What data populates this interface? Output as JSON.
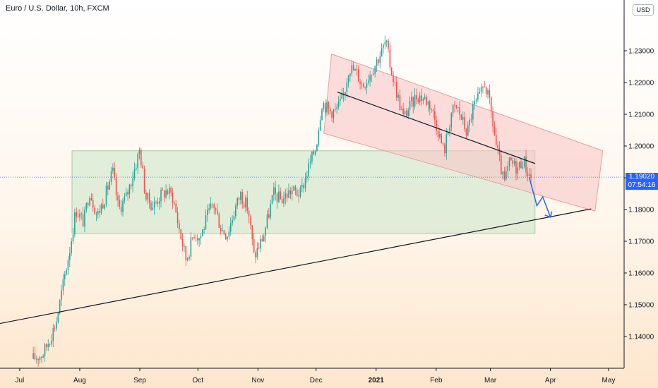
{
  "header": {
    "title": "Euro / U.S. Dollar, 10h, FXCM",
    "currency": "USD"
  },
  "price_tag": {
    "price": "1.19020",
    "countdown": "07:54:16"
  },
  "colors": {
    "up_candle": "#26a69a",
    "down_candle": "#ef5350",
    "green_zone": "#c8e6c9",
    "red_channel": "#f8c8c8",
    "trend_line": "#131722",
    "projection": "#2962ff",
    "price_tag": "#2962ff"
  },
  "chart_data": {
    "type": "candlestick",
    "title": "Euro / U.S. Dollar, 10h, FXCM",
    "xlabel": "",
    "ylabel": "",
    "ylim": [
      1.13,
      1.244
    ],
    "y_ticks": [
      "1.23000",
      "1.22000",
      "1.21000",
      "1.20000",
      "1.19000",
      "1.18000",
      "1.17000",
      "1.16000",
      "1.15000",
      "1.14000"
    ],
    "x_ticks": [
      {
        "label": "Jul",
        "bold": false
      },
      {
        "label": "Aug",
        "bold": false
      },
      {
        "label": "Sep",
        "bold": false
      },
      {
        "label": "Oct",
        "bold": false
      },
      {
        "label": "Nov",
        "bold": false
      },
      {
        "label": "Dec",
        "bold": false
      },
      {
        "label": "2021",
        "bold": true
      },
      {
        "label": "Feb",
        "bold": false
      },
      {
        "label": "Mar",
        "bold": false
      },
      {
        "label": "Apr",
        "bold": false
      },
      {
        "label": "May",
        "bold": false
      }
    ],
    "grid": false,
    "series": [
      {
        "style": "close-path",
        "points": [
          [
            "2020-07-08",
            1.133
          ],
          [
            "2020-07-13",
            1.1345
          ],
          [
            "2020-07-17",
            1.14
          ],
          [
            "2020-07-20",
            1.145
          ],
          [
            "2020-07-23",
            1.155
          ],
          [
            "2020-07-27",
            1.168
          ],
          [
            "2020-07-30",
            1.18
          ],
          [
            "2020-08-03",
            1.176
          ],
          [
            "2020-08-06",
            1.186
          ],
          [
            "2020-08-10",
            1.178
          ],
          [
            "2020-08-14",
            1.184
          ],
          [
            "2020-08-18",
            1.192
          ],
          [
            "2020-08-21",
            1.18
          ],
          [
            "2020-08-25",
            1.184
          ],
          [
            "2020-08-28",
            1.19
          ],
          [
            "2020-09-01",
            1.199
          ],
          [
            "2020-09-04",
            1.184
          ],
          [
            "2020-09-08",
            1.181
          ],
          [
            "2020-09-11",
            1.184
          ],
          [
            "2020-09-15",
            1.186
          ],
          [
            "2020-09-18",
            1.184
          ],
          [
            "2020-09-22",
            1.172
          ],
          [
            "2020-09-25",
            1.164
          ],
          [
            "2020-09-29",
            1.173
          ],
          [
            "2020-10-02",
            1.171
          ],
          [
            "2020-10-06",
            1.178
          ],
          [
            "2020-10-09",
            1.182
          ],
          [
            "2020-10-13",
            1.174
          ],
          [
            "2020-10-16",
            1.172
          ],
          [
            "2020-10-20",
            1.18
          ],
          [
            "2020-10-23",
            1.185
          ],
          [
            "2020-10-27",
            1.18
          ],
          [
            "2020-10-30",
            1.165
          ],
          [
            "2020-11-04",
            1.172
          ],
          [
            "2020-11-09",
            1.185
          ],
          [
            "2020-11-13",
            1.183
          ],
          [
            "2020-11-18",
            1.186
          ],
          [
            "2020-11-23",
            1.185
          ],
          [
            "2020-11-27",
            1.193
          ],
          [
            "2020-12-01",
            1.2
          ],
          [
            "2020-12-04",
            1.214
          ],
          [
            "2020-12-08",
            1.211
          ],
          [
            "2020-12-11",
            1.211
          ],
          [
            "2020-12-15",
            1.215
          ],
          [
            "2020-12-18",
            1.225
          ],
          [
            "2020-12-22",
            1.223
          ],
          [
            "2020-12-25",
            1.219
          ],
          [
            "2020-12-29",
            1.223
          ],
          [
            "2021-01-04",
            1.23
          ],
          [
            "2021-01-06",
            1.233
          ],
          [
            "2021-01-08",
            1.226
          ],
          [
            "2021-01-12",
            1.216
          ],
          [
            "2021-01-15",
            1.209
          ],
          [
            "2021-01-19",
            1.213
          ],
          [
            "2021-01-22",
            1.216
          ],
          [
            "2021-01-26",
            1.215
          ],
          [
            "2021-01-29",
            1.213
          ],
          [
            "2021-02-02",
            1.205
          ],
          [
            "2021-02-05",
            1.198
          ],
          [
            "2021-02-09",
            1.211
          ],
          [
            "2021-02-12",
            1.212
          ],
          [
            "2021-02-17",
            1.204
          ],
          [
            "2021-02-20",
            1.212
          ],
          [
            "2021-02-24",
            1.216
          ],
          [
            "2021-02-26",
            1.22
          ],
          [
            "2021-03-01",
            1.212
          ],
          [
            "2021-03-04",
            1.2
          ],
          [
            "2021-03-08",
            1.188
          ],
          [
            "2021-03-11",
            1.195
          ],
          [
            "2021-03-15",
            1.193
          ],
          [
            "2021-03-18",
            1.196
          ],
          [
            "2021-03-20",
            1.192
          ],
          [
            "2021-03-22",
            1.1902
          ]
        ]
      }
    ],
    "green_zone": {
      "x0": "2020-07-28",
      "x1": "2021-03-24",
      "y_low": 1.1725,
      "y_high": 1.1985
    },
    "red_channel": {
      "upper": [
        [
          "2020-12-09",
          1.229
        ],
        [
          "2021-04-28",
          1.1985
        ]
      ],
      "lower": [
        [
          "2020-12-05",
          1.204
        ],
        [
          "2021-04-24",
          1.1795
        ]
      ]
    },
    "trend_lines": [
      {
        "from": [
          "2020-06-20",
          1.144
        ],
        "to": [
          "2021-04-22",
          1.1802
        ]
      },
      {
        "from": [
          "2020-12-12",
          1.217
        ],
        "to": [
          "2021-03-24",
          1.1945
        ]
      }
    ],
    "projection": [
      [
        "2021-03-21",
        1.1902
      ],
      [
        "2021-03-25",
        1.1812
      ],
      [
        "2021-03-28",
        1.184
      ],
      [
        "2021-04-01",
        1.1776
      ]
    ],
    "last_price": 1.1902
  }
}
